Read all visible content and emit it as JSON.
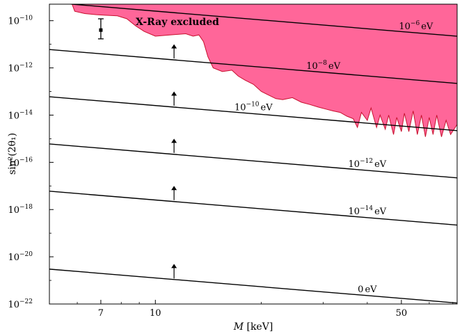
{
  "chart_data": {
    "type": "line",
    "xlabel": "M [keV]",
    "ylabel": "sin²(2θ₁)",
    "xscale": "log",
    "yscale": "log",
    "xlim": [
      5.0,
      72.0
    ],
    "ylim": [
      1e-22,
      5e-10
    ],
    "x_ticks": [
      {
        "value": 7,
        "label": "7"
      },
      {
        "value": 10,
        "label": "10"
      },
      {
        "value": 50,
        "label": "50"
      }
    ],
    "y_ticks": [
      {
        "value": 1e-22,
        "base": "10",
        "exp": "−22"
      },
      {
        "value": 1e-20,
        "base": "10",
        "exp": "−20"
      },
      {
        "value": 1e-18,
        "base": "10",
        "exp": "−18"
      },
      {
        "value": 1e-16,
        "base": "10",
        "exp": "−16"
      },
      {
        "value": 1e-14,
        "base": "10",
        "exp": "−14"
      },
      {
        "value": 1e-12,
        "base": "10",
        "exp": "−12"
      },
      {
        "value": 1e-10,
        "base": "10",
        "exp": "−10"
      }
    ],
    "lines": [
      {
        "label_base": "10",
        "label_exp": "−6",
        "label_unit": "eV",
        "x": [
          5.0,
          72.0
        ],
        "y": [
          6e-10,
          2.2e-11
        ],
        "label_at": 55
      },
      {
        "label_base": "10",
        "label_exp": "−8",
        "label_unit": "eV",
        "x": [
          5.0,
          72.0
        ],
        "y": [
          6e-12,
          2.2e-13
        ],
        "label_at": 30
      },
      {
        "label_base": "10",
        "label_exp": "−10",
        "label_unit": "eV",
        "x": [
          5.0,
          72.0
        ],
        "y": [
          6e-14,
          2.2e-15
        ],
        "label_at": 19
      },
      {
        "label_base": "10",
        "label_exp": "−12",
        "label_unit": "eV",
        "x": [
          5.0,
          72.0
        ],
        "y": [
          6e-16,
          2.2e-17
        ],
        "label_at": 40
      },
      {
        "label_base": "10",
        "label_exp": "−14",
        "label_unit": "eV",
        "x": [
          5.0,
          72.0
        ],
        "y": [
          6e-18,
          2.2e-19
        ],
        "label_at": 40
      },
      {
        "label_base": "0",
        "label_exp": "",
        "label_unit": "eV",
        "x": [
          5.0,
          72.0
        ],
        "y": [
          3e-21,
          1.1e-22
        ],
        "label_at": 40
      }
    ],
    "excluded_region": {
      "label": "X-Ray excluded",
      "color": "#ff6699",
      "edge_color": "#c8102e",
      "boundary": [
        [
          5.8,
          5e-10
        ],
        [
          5.9,
          2.5e-10
        ],
        [
          6.3,
          2e-10
        ],
        [
          6.8,
          1.8e-10
        ],
        [
          7.2,
          1.7e-10
        ],
        [
          7.8,
          1.6e-10
        ],
        [
          8.3,
          1.2e-10
        ],
        [
          8.8,
          6e-11
        ],
        [
          9.3,
          3.5e-11
        ],
        [
          10.0,
          2.2e-11
        ],
        [
          11.0,
          2.5e-11
        ],
        [
          12.2,
          2.8e-11
        ],
        [
          12.8,
          2.2e-11
        ],
        [
          13.3,
          2.5e-11
        ],
        [
          13.7,
          1.3e-11
        ],
        [
          14.1,
          3e-12
        ],
        [
          14.6,
          1e-12
        ],
        [
          15.5,
          7e-13
        ],
        [
          16.5,
          8e-13
        ],
        [
          17.2,
          4.5e-13
        ],
        [
          18.0,
          3e-13
        ],
        [
          19.0,
          2e-13
        ],
        [
          20.0,
          1e-13
        ],
        [
          21.0,
          7e-14
        ],
        [
          22.0,
          5e-14
        ],
        [
          23.0,
          4.5e-14
        ],
        [
          24.5,
          5.5e-14
        ],
        [
          26.0,
          3.5e-14
        ],
        [
          27.5,
          2.8e-14
        ],
        [
          29.0,
          2.2e-14
        ],
        [
          30.5,
          1.8e-14
        ],
        [
          32.0,
          1.5e-14
        ],
        [
          33.5,
          1.3e-14
        ],
        [
          35.0,
          9e-15
        ],
        [
          36.5,
          7e-15
        ],
        [
          37.5,
          3e-15
        ],
        [
          38.5,
          1.3e-14
        ],
        [
          40.0,
          6e-15
        ],
        [
          41.0,
          2e-14
        ],
        [
          42.5,
          3e-15
        ],
        [
          43.5,
          1e-14
        ],
        [
          45.0,
          2.5e-15
        ],
        [
          46.0,
          1e-14
        ],
        [
          47.5,
          1.5e-15
        ],
        [
          48.5,
          8e-15
        ],
        [
          50.0,
          2e-15
        ],
        [
          51.0,
          1.2e-14
        ],
        [
          52.5,
          2e-15
        ],
        [
          54.0,
          1.5e-14
        ],
        [
          55.5,
          1.5e-15
        ],
        [
          57.0,
          1e-14
        ],
        [
          58.5,
          1.2e-15
        ],
        [
          60.0,
          8e-15
        ],
        [
          61.5,
          1.5e-15
        ],
        [
          63.0,
          1e-14
        ],
        [
          65.0,
          1.2e-15
        ],
        [
          67.0,
          6e-15
        ],
        [
          69.0,
          1.5e-15
        ],
        [
          72.0,
          4e-15
        ]
      ]
    },
    "data_point": {
      "x": 7.0,
      "y": 4e-11,
      "y_low": 1.7e-11,
      "y_high": 1.2e-10
    },
    "arrows": {
      "x": 11.3,
      "points": [
        {
          "y_from": 2.5e-12,
          "y_to": 1e-11
        },
        {
          "y_from": 2.5e-14,
          "y_to": 1e-13
        },
        {
          "y_from": 2.5e-16,
          "y_to": 1e-15
        },
        {
          "y_from": 2.5e-18,
          "y_to": 1e-17
        },
        {
          "y_from": 1.2e-21,
          "y_to": 5e-21
        }
      ]
    }
  }
}
